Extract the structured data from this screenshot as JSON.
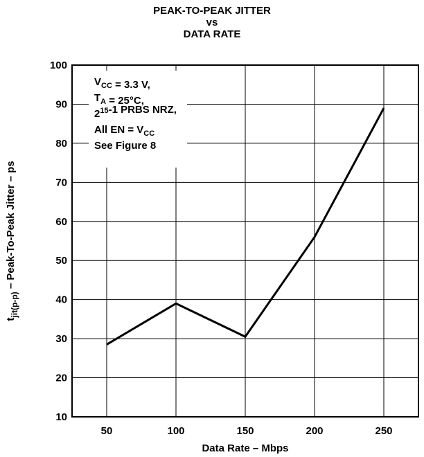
{
  "chart_data": {
    "type": "line",
    "title": [
      "PEAK-TO-PEAK JITTER",
      "vs",
      "DATA RATE"
    ],
    "xlabel": "Data Rate – Mbps",
    "ylabel": {
      "sym": "t",
      "sub": "jit(p-p)",
      "rest": "  – Peak-To-Peak Jitter – ps"
    },
    "xlim": [
      25,
      275
    ],
    "ylim": [
      10,
      100
    ],
    "xticks": [
      50,
      100,
      150,
      200,
      250
    ],
    "yticks": [
      10,
      20,
      30,
      40,
      50,
      60,
      70,
      80,
      90,
      100
    ],
    "grid": true,
    "x": [
      50,
      100,
      150,
      200,
      250
    ],
    "series": [
      {
        "values": [
          28.5,
          39,
          30.5,
          56,
          89
        ]
      }
    ],
    "conditions": [
      [
        {
          "t": "V"
        },
        {
          "t": "CC",
          "s": "sub"
        },
        {
          "t": " = 3.3 V,"
        }
      ],
      [
        {
          "t": "T"
        },
        {
          "t": "A",
          "s": "sub"
        },
        {
          "t": " = 25°C,"
        }
      ],
      [
        {
          "t": "2"
        },
        {
          "t": "15",
          "s": "sup"
        },
        {
          "t": "-1 PRBS NRZ,"
        }
      ],
      [
        {
          "t": "All EN = V"
        },
        {
          "t": "CC",
          "s": "sub"
        }
      ],
      [
        {
          "t": "See Figure 8"
        }
      ]
    ],
    "line_color": "#000000",
    "grid_color": "#000000"
  }
}
